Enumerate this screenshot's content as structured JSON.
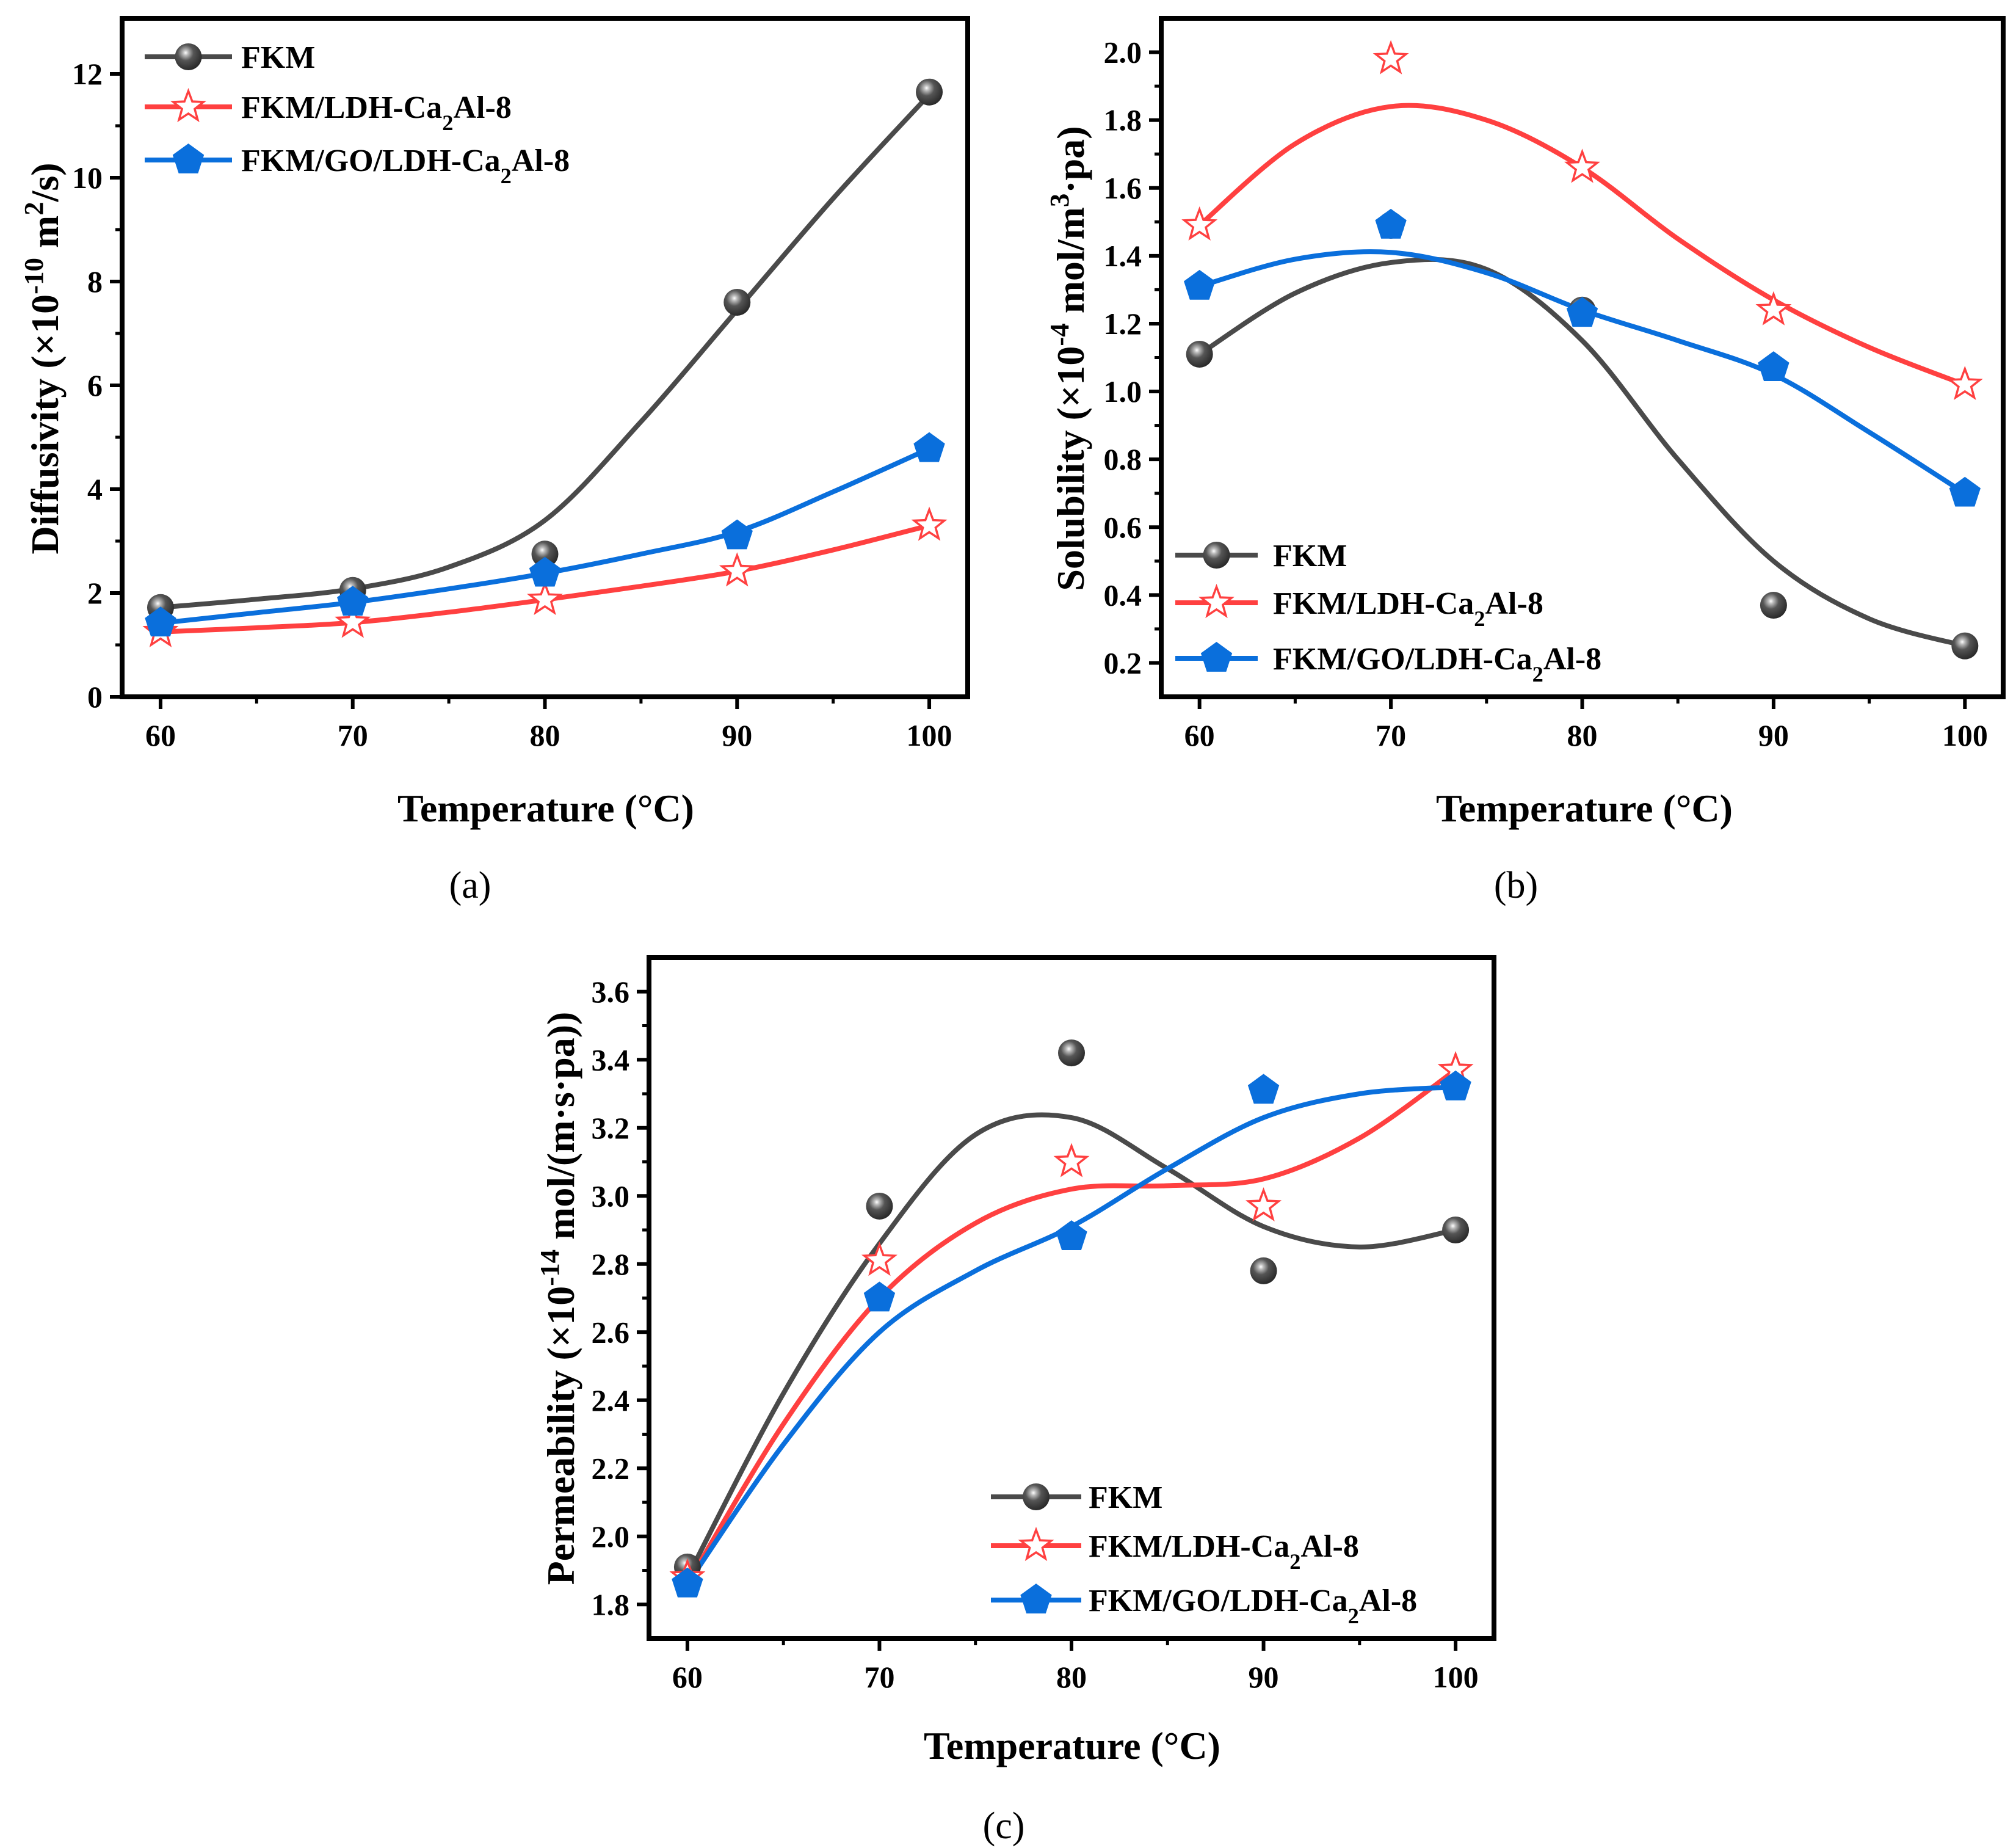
{
  "colors": {
    "FKM": "#4a4a4a",
    "LDH": "#ff4040",
    "GO": "#0a6fdc",
    "axis": "#000000"
  },
  "chart_data": [
    {
      "type": "line",
      "panel_label": "(a)",
      "xlabel": "Temperature (°C)",
      "ylabel_segments": [
        {
          "t": "Diffusivity (×10"
        },
        {
          "t": "-10",
          "sup": true
        },
        {
          "t": " m"
        },
        {
          "t": "2",
          "sup": true
        },
        {
          "t": "/s)"
        }
      ],
      "x": [
        60,
        70,
        80,
        90,
        100
      ],
      "xticks": [
        60,
        70,
        80,
        90,
        100
      ],
      "xlim": [
        58,
        102
      ],
      "yticks": [
        0,
        2,
        4,
        6,
        8,
        10,
        12
      ],
      "ytick_labels": [
        "0",
        "2",
        "4",
        "6",
        "8",
        "10",
        "12"
      ],
      "ylim": [
        0,
        13.07
      ],
      "legend": "top-left",
      "fit_x": [
        60,
        65,
        70,
        75,
        80,
        85,
        90,
        95,
        100
      ],
      "series": [
        {
          "key": "FKM",
          "name": "FKM",
          "marker": "sphere",
          "values": [
            1.72,
            2.05,
            2.75,
            7.6,
            11.65
          ],
          "fit": [
            1.72,
            1.88,
            2.08,
            2.5,
            3.4,
            5.3,
            7.45,
            9.6,
            11.6
          ]
        },
        {
          "key": "LDH",
          "name": "FKM/LDH-Ca2Al-8",
          "marker": "star",
          "values": [
            1.25,
            1.43,
            1.87,
            2.42,
            3.3
          ],
          "fit": [
            1.25,
            1.33,
            1.43,
            1.63,
            1.87,
            2.13,
            2.42,
            2.83,
            3.3
          ]
        },
        {
          "key": "GO",
          "name": "FKM/GO/LDH-Ca2Al-8",
          "marker": "pentagon",
          "values": [
            1.42,
            1.82,
            2.38,
            3.1,
            4.78
          ],
          "fit": [
            1.42,
            1.62,
            1.82,
            2.08,
            2.38,
            2.75,
            3.18,
            3.95,
            4.78
          ]
        }
      ]
    },
    {
      "type": "line",
      "panel_label": "(b)",
      "xlabel": "Temperature (°C)",
      "ylabel_segments": [
        {
          "t": "Solubility (×10"
        },
        {
          "t": "-4",
          "sup": true
        },
        {
          "t": " mol/m"
        },
        {
          "t": "3",
          "sup": true
        },
        {
          "t": "·pa)"
        }
      ],
      "x": [
        60,
        70,
        80,
        90,
        100
      ],
      "xticks": [
        60,
        70,
        80,
        90,
        100
      ],
      "xlim": [
        58,
        102
      ],
      "yticks": [
        0.2,
        0.4,
        0.6,
        0.8,
        1.0,
        1.2,
        1.4,
        1.6,
        1.8,
        2.0
      ],
      "ytick_labels": [
        "0.2",
        "0.4",
        "0.6",
        "0.8",
        "1.0",
        "1.2",
        "1.4",
        "1.6",
        "1.8",
        "2.0"
      ],
      "ylim": [
        0.1,
        2.1
      ],
      "legend": "bottom-left",
      "fit_x": [
        60,
        65,
        70,
        75,
        80,
        85,
        90,
        95,
        100
      ],
      "series": [
        {
          "key": "FKM",
          "name": "FKM",
          "marker": "sphere",
          "values": [
            1.11,
            1.49,
            1.24,
            0.37,
            0.25
          ],
          "fit": [
            1.11,
            1.29,
            1.38,
            1.36,
            1.15,
            0.8,
            0.5,
            0.33,
            0.25
          ]
        },
        {
          "key": "LDH",
          "name": "FKM/LDH-Ca2Al-8",
          "marker": "star",
          "values": [
            1.49,
            1.98,
            1.66,
            1.24,
            1.02
          ],
          "fit": [
            1.49,
            1.73,
            1.84,
            1.8,
            1.66,
            1.45,
            1.27,
            1.13,
            1.02
          ]
        },
        {
          "key": "GO",
          "name": "FKM/GO/LDH-Ca2Al-8",
          "marker": "pentagon",
          "values": [
            1.31,
            1.49,
            1.23,
            1.07,
            0.7
          ],
          "fit": [
            1.31,
            1.39,
            1.41,
            1.35,
            1.24,
            1.15,
            1.05,
            0.88,
            0.7
          ]
        }
      ]
    },
    {
      "type": "line",
      "panel_label": "(c)",
      "xlabel": "Temperature (°C)",
      "ylabel_segments": [
        {
          "t": "Permeability (×10"
        },
        {
          "t": "-14",
          "sup": true
        },
        {
          "t": " mol/(m·s·pa))"
        }
      ],
      "x": [
        60,
        70,
        80,
        90,
        100
      ],
      "xticks": [
        60,
        70,
        80,
        90,
        100
      ],
      "xlim": [
        58,
        102
      ],
      "yticks": [
        1.8,
        2.0,
        2.2,
        2.4,
        2.6,
        2.8,
        3.0,
        3.2,
        3.4,
        3.6
      ],
      "ytick_labels": [
        "1.8",
        "2.0",
        "2.2",
        "2.4",
        "2.6",
        "2.8",
        "3.0",
        "3.2",
        "3.4",
        "3.6"
      ],
      "ylim": [
        1.7,
        3.7
      ],
      "legend": "bottom-right",
      "fit_x": [
        60,
        65,
        70,
        75,
        80,
        85,
        90,
        95,
        100
      ],
      "series": [
        {
          "key": "FKM",
          "name": "FKM",
          "marker": "sphere",
          "values": [
            1.91,
            2.97,
            3.42,
            2.78,
            2.9
          ],
          "fit": [
            1.88,
            2.42,
            2.86,
            3.18,
            3.23,
            3.08,
            2.91,
            2.85,
            2.9
          ]
        },
        {
          "key": "LDH",
          "name": "FKM/LDH-Ca2Al-8",
          "marker": "star",
          "values": [
            1.88,
            2.81,
            3.1,
            2.97,
            3.37
          ],
          "fit": [
            1.86,
            2.33,
            2.7,
            2.92,
            3.02,
            3.03,
            3.05,
            3.17,
            3.37
          ]
        },
        {
          "key": "GO",
          "name": "FKM/GO/LDH-Ca2Al-8",
          "marker": "pentagon",
          "values": [
            1.86,
            2.7,
            2.88,
            3.31,
            3.32
          ],
          "fit": [
            1.86,
            2.27,
            2.6,
            2.78,
            2.91,
            3.08,
            3.23,
            3.3,
            3.32
          ]
        }
      ]
    }
  ]
}
